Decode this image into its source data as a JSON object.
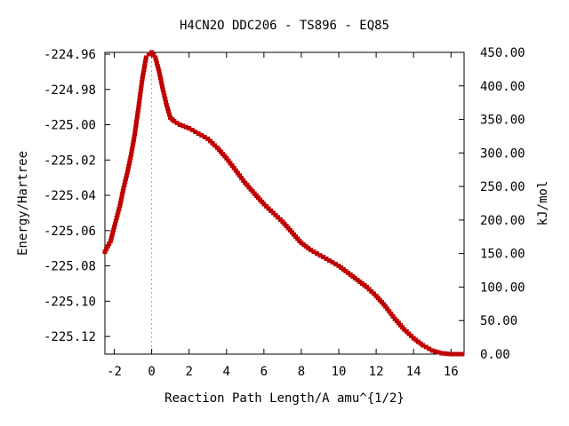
{
  "chart_data": {
    "type": "line",
    "title": "H4CN2O   DDC206 - TS896 - EQ85",
    "xlabel": "Reaction Path Length/A amu^{1/2}",
    "ylabel": "Energy/Hartree",
    "y2label": "kJ/mol",
    "xlim": [
      -2.5,
      16.7
    ],
    "ylim": [
      -225.13,
      -224.959
    ],
    "y2lim": [
      0,
      450
    ],
    "xticks": [
      "-2",
      "0",
      "2",
      "4",
      "6",
      "8",
      "10",
      "12",
      "14",
      "16"
    ],
    "yticks": [
      "-224.96",
      "-224.98",
      "-225.00",
      "-225.02",
      "-225.04",
      "-225.06",
      "-225.08",
      "-225.10",
      "-225.12"
    ],
    "y2ticks": [
      "450.00",
      "400.00",
      "350.00",
      "300.00",
      "250.00",
      "200.00",
      "150.00",
      "100.00",
      "50.00",
      "0.00"
    ],
    "ts_marker_x": 0,
    "grid": false,
    "line_color": "#00a000",
    "marker_color": "#c00000",
    "ts_line_color": "#a0a0a0",
    "series": [
      {
        "x": [
          -2.5,
          -2.2,
          -2.0,
          -1.7,
          -1.5,
          -1.3,
          -1.1,
          -0.9,
          -0.7,
          -0.5,
          -0.3,
          -0.15,
          0.0,
          0.2,
          0.4,
          0.6,
          0.8,
          1.0,
          1.2,
          1.5,
          2.0,
          2.5,
          3.0,
          3.5,
          4.0,
          4.5,
          5.0,
          5.5,
          6.0,
          6.5,
          7.0,
          7.5,
          8.0,
          8.5,
          9.0,
          9.5,
          10.0,
          10.5,
          11.0,
          11.5,
          12.0,
          12.5,
          13.0,
          13.5,
          14.0,
          14.5,
          15.0,
          15.5,
          16.0,
          16.6
        ],
        "y": [
          -225.072,
          -225.066,
          -225.058,
          -225.046,
          -225.036,
          -225.027,
          -225.017,
          -225.005,
          -224.99,
          -224.974,
          -224.962,
          -224.96,
          -224.959,
          -224.962,
          -224.97,
          -224.98,
          -224.989,
          -224.996,
          -224.998,
          -225.0,
          -225.002,
          -225.005,
          -225.008,
          -225.013,
          -225.019,
          -225.026,
          -225.033,
          -225.039,
          -225.045,
          -225.05,
          -225.055,
          -225.061,
          -225.067,
          -225.071,
          -225.074,
          -225.077,
          -225.08,
          -225.084,
          -225.088,
          -225.092,
          -225.097,
          -225.103,
          -225.11,
          -225.116,
          -225.121,
          -225.125,
          -225.128,
          -225.1295,
          -225.13,
          -225.13
        ]
      }
    ]
  }
}
